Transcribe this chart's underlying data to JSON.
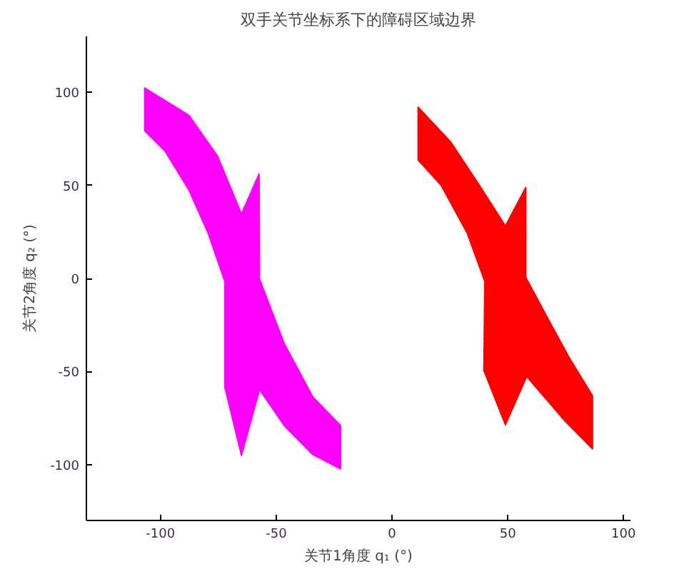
{
  "chart_data": {
    "type": "area",
    "title": "双手关节坐标系下的障碍区域边界",
    "xlabel": "关节1角度 q₁ (°)",
    "ylabel": "关节2角度 q₂ (°)",
    "xlim": [
      -132,
      103
    ],
    "ylim": [
      -130,
      130
    ],
    "xticks": [
      -100,
      -50,
      0,
      50,
      100
    ],
    "yticks": [
      -100,
      -50,
      0,
      50,
      100
    ],
    "grid": false,
    "series": [
      {
        "color": "#ff00ff",
        "x": [
          -106.8,
          -87.7,
          -75.3,
          -65,
          -57.4,
          -57.2,
          -46.5,
          -34.2,
          -22.2,
          -22.2,
          -34.2,
          -46.5,
          -57.2,
          -65,
          -72.2,
          -72.2,
          -79.4,
          -87.7,
          -97.9,
          -106.8
        ],
        "values": [
          102.3,
          87.6,
          65.6,
          34.6,
          56.1,
          -0.3,
          -35.1,
          -63.6,
          -79.1,
          -102.3,
          -94.6,
          -79.1,
          -59.7,
          -95.1,
          -58.4,
          -1.6,
          24.3,
          47.5,
          68.2,
          79.3
        ]
      },
      {
        "color": "#ff0000",
        "x": [
          11.3,
          25.3,
          37.7,
          49,
          57.8,
          57.8,
          66.5,
          76.7,
          86.6,
          86.6,
          74.7,
          58.2,
          49,
          39.7,
          40.1,
          32.5,
          21.2,
          11.3
        ],
        "values": [
          92,
          73.4,
          50.1,
          28.2,
          48.8,
          0.5,
          -19.6,
          -42.9,
          -63,
          -91.5,
          -76.5,
          -52.7,
          -78.6,
          -49.4,
          -1.6,
          24.3,
          50.1,
          63.6
        ]
      }
    ]
  }
}
